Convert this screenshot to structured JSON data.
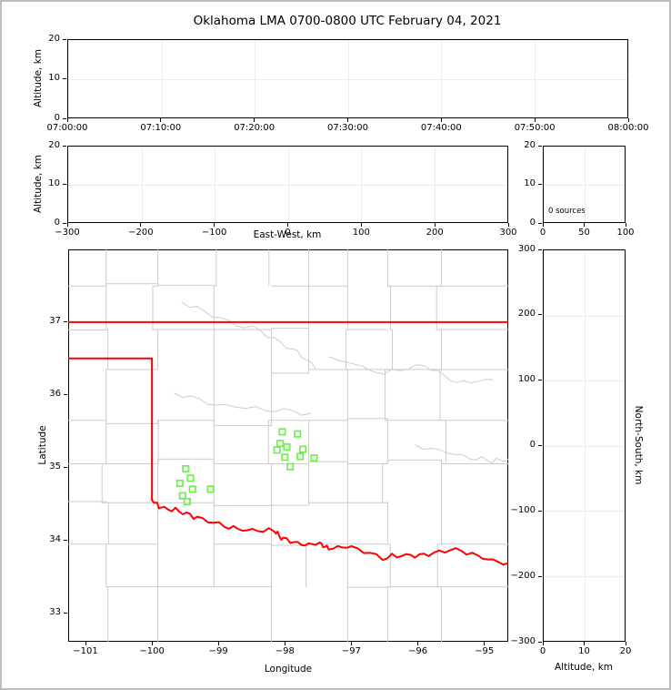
{
  "title": "Oklahoma LMA 0700-0800 UTC February 04, 2021",
  "colors": {
    "state_border": "#ff0000",
    "county_lines": "#cccccc",
    "source_marker": "#70ee50",
    "gridline": "#ececec",
    "axis": "#000000",
    "frame_border": "#bdbdbd"
  },
  "chart_data": [
    {
      "id": "time_altitude",
      "type": "scatter",
      "xlabel": "",
      "ylabel": "Altitude, km",
      "x_tick_labels": [
        "07:00:00",
        "07:10:00",
        "07:20:00",
        "07:30:00",
        "07:40:00",
        "07:50:00",
        "08:00:00"
      ],
      "y_ticks": [
        0,
        10,
        20
      ],
      "ylim": [
        0,
        20
      ],
      "grid": true,
      "points": []
    },
    {
      "id": "ew_altitude",
      "type": "scatter",
      "xlabel": "East-West, km",
      "ylabel": "Altitude, km",
      "x_ticks": [
        -300,
        -200,
        -100,
        0,
        100,
        200,
        300
      ],
      "xlim": [
        -300,
        300
      ],
      "y_ticks": [
        0,
        10,
        20
      ],
      "ylim": [
        0,
        20
      ],
      "grid": true,
      "points": []
    },
    {
      "id": "altitude_histogram",
      "type": "line",
      "annotation": "0 sources",
      "x_ticks": [
        0,
        50,
        100
      ],
      "xlim": [
        0,
        100
      ],
      "y_ticks": [
        0,
        10,
        20
      ],
      "ylim": [
        0,
        20
      ],
      "grid": true,
      "points": []
    },
    {
      "id": "plan_view_map",
      "type": "scatter",
      "xlabel": "Longitude",
      "ylabel": "Latitude",
      "x_ticks": [
        -101,
        -100,
        -99,
        -98,
        -97,
        -96,
        -95
      ],
      "xlim": [
        -101.26,
        -94.64
      ],
      "y_ticks": [
        33,
        34,
        35,
        36,
        37
      ],
      "ylim": [
        32.6,
        38.0
      ],
      "grid": false,
      "marker": "open-square",
      "points": [
        [
          -98.04,
          35.49
        ],
        [
          -97.81,
          35.46
        ],
        [
          -98.07,
          35.33
        ],
        [
          -97.97,
          35.28
        ],
        [
          -98.12,
          35.24
        ],
        [
          -97.73,
          35.25
        ],
        [
          -97.77,
          35.15
        ],
        [
          -97.56,
          35.13
        ],
        [
          -98.0,
          35.14
        ],
        [
          -97.92,
          35.01
        ],
        [
          -99.49,
          34.98
        ],
        [
          -99.42,
          34.85
        ],
        [
          -99.58,
          34.78
        ],
        [
          -99.39,
          34.7
        ],
        [
          -99.12,
          34.7
        ],
        [
          -99.54,
          34.61
        ],
        [
          -99.47,
          34.53
        ]
      ],
      "state_border": {
        "north_lat": 37.0,
        "panhandle_south_lat": 36.5,
        "west_lon": -100.0
      },
      "red_river": [
        [
          -100.0,
          34.55
        ],
        [
          -99.87,
          34.45
        ],
        [
          -99.59,
          34.4
        ],
        [
          -99.32,
          34.31
        ],
        [
          -98.91,
          34.2
        ],
        [
          -98.57,
          34.13
        ],
        [
          -98.16,
          34.13
        ],
        [
          -98.03,
          34.01
        ],
        [
          -97.75,
          33.94
        ],
        [
          -97.48,
          33.95
        ],
        [
          -97.34,
          33.89
        ],
        [
          -97.0,
          33.91
        ],
        [
          -96.53,
          33.76
        ],
        [
          -96.18,
          33.79
        ],
        [
          -95.84,
          33.81
        ],
        [
          -95.43,
          33.88
        ],
        [
          -95.02,
          33.76
        ],
        [
          -94.64,
          33.66
        ]
      ]
    },
    {
      "id": "ns_altitude",
      "type": "scatter",
      "xlabel": "Altitude, km",
      "ylabel_right": "North-South, km",
      "x_ticks": [
        0,
        10,
        20
      ],
      "xlim": [
        0,
        20
      ],
      "y_ticks": [
        -300,
        -200,
        -100,
        0,
        100,
        200,
        300
      ],
      "ylim": [
        -300,
        300
      ],
      "grid": true,
      "points": []
    }
  ]
}
